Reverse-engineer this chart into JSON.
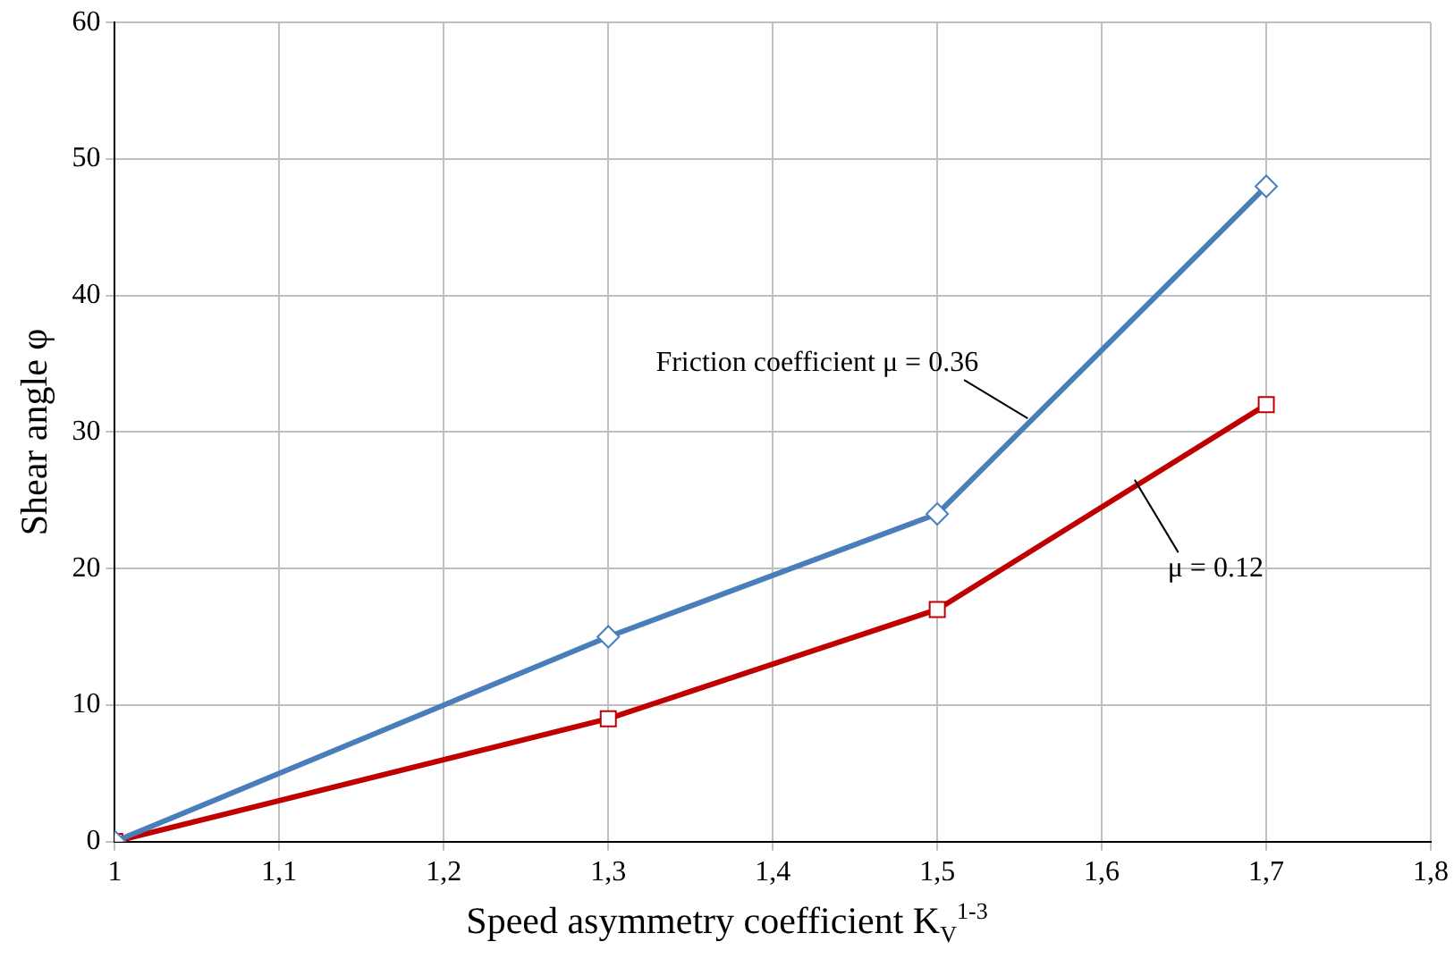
{
  "chart_data": {
    "type": "line",
    "xlabel": "Speed asymmetry coefficient K$_{V}$$^{1-3}$",
    "ylabel": "Shear angle φ",
    "x": [
      1,
      1.3,
      1.5,
      1.7
    ],
    "series": [
      {
        "name": "Friction coefficient μ = 0.36",
        "color": "#4a7ebb",
        "values": [
          0,
          15,
          24,
          48
        ],
        "marker": "diamond"
      },
      {
        "name": "μ = 0.12",
        "color": "#c00000",
        "values": [
          0,
          9,
          17,
          32
        ],
        "marker": "square"
      }
    ],
    "xlim": [
      1,
      1.8
    ],
    "xticks": [
      {
        "value": 1,
        "label": "1"
      },
      {
        "value": 1.1,
        "label": "1,1"
      },
      {
        "value": 1.2,
        "label": "1,2"
      },
      {
        "value": 1.3,
        "label": "1,3"
      },
      {
        "value": 1.4,
        "label": "1,4"
      },
      {
        "value": 1.5,
        "label": "1,5"
      },
      {
        "value": 1.6,
        "label": "1,6"
      },
      {
        "value": 1.7,
        "label": "1,7"
      },
      {
        "value": 1.8,
        "label": "1,8"
      }
    ],
    "ylim": [
      0,
      60
    ],
    "yticks": [
      0,
      10,
      20,
      30,
      40,
      50,
      60
    ],
    "grid": true,
    "legend": false,
    "line_style": "solid"
  }
}
